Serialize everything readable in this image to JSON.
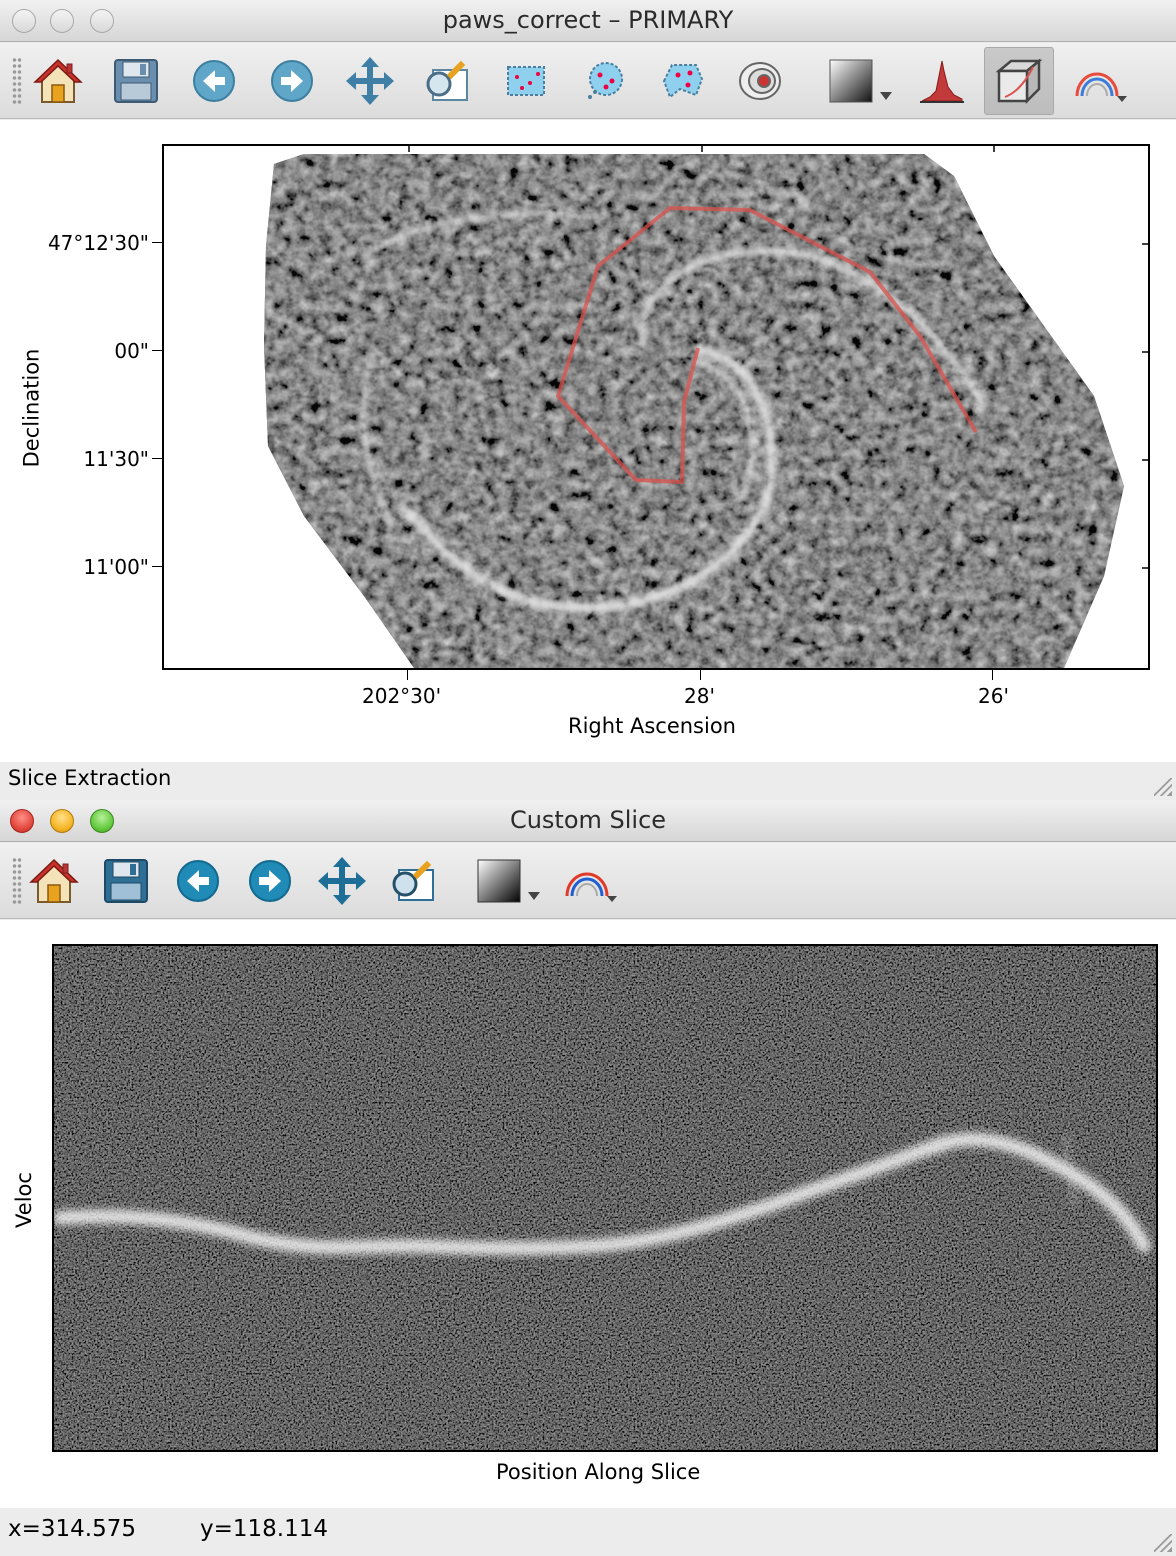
{
  "top_window": {
    "title": "paws_correct – PRIMARY",
    "toolbar": {
      "icons": [
        "home-icon",
        "save-icon",
        "back-icon",
        "forward-icon",
        "pan-icon",
        "zoom-icon",
        "rectangle-roi-icon",
        "circle-roi-icon",
        "polygon-roi-icon",
        "contour-icon",
        "colormap-icon",
        "histogram-icon",
        "slice-cube-icon",
        "rgb-icon"
      ]
    },
    "plot": {
      "y_axis_title": "Declination",
      "x_axis_title": "Right Ascension",
      "y_ticks": [
        "47°12'30\"",
        "00\"",
        "11'30\"",
        "11'00\""
      ],
      "x_ticks": [
        "202°30'",
        "28'",
        "26'"
      ],
      "path_color": "#d9534f"
    },
    "status": "Slice Extraction"
  },
  "bottom_window": {
    "title": "Custom Slice",
    "toolbar": {
      "icons": [
        "home-icon",
        "save-icon",
        "back-icon",
        "forward-icon",
        "pan-icon",
        "zoom-icon",
        "colormap-icon",
        "rgb-icon"
      ]
    },
    "plot": {
      "y_axis_title": "Veloc",
      "x_axis_title": "Position Along Slice"
    },
    "status": {
      "x": "x=314.575",
      "y": "y=118.114"
    }
  }
}
